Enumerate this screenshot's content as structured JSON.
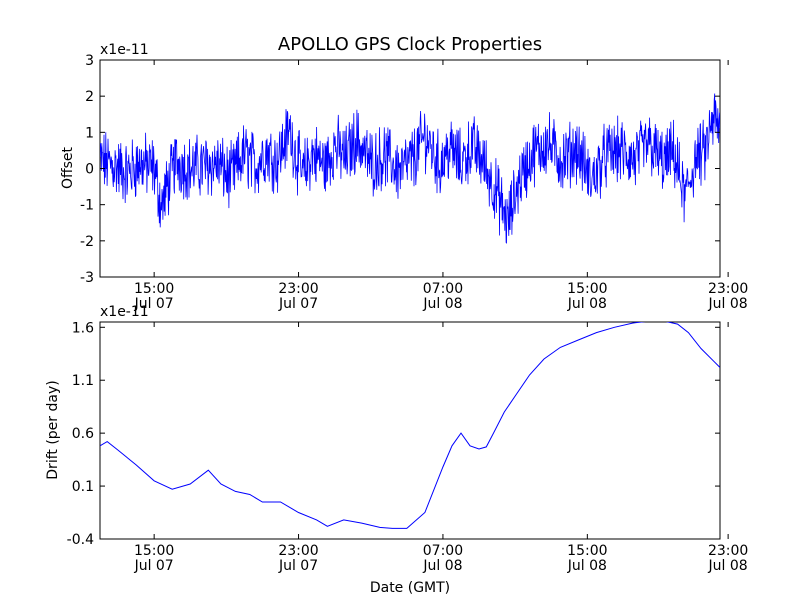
{
  "figure": {
    "title": "APOLLO GPS Clock Properties"
  },
  "chart_data": [
    {
      "type": "line",
      "title": "APOLLO GPS Clock Properties",
      "xlabel": "",
      "ylabel": "Offset",
      "y_scale_label": "x1e-11",
      "x_hours": [
        0,
        34.35
      ],
      "xlim_hours": [
        0,
        34.35
      ],
      "ylim": [
        -3,
        3
      ],
      "y_ticks": [
        -3,
        -2,
        -1,
        0,
        1,
        2,
        3
      ],
      "y_tick_labels": [
        "-3",
        "-2",
        "-1",
        "0",
        "1",
        "2",
        "3"
      ],
      "x_ticks_hours": [
        3,
        11,
        19,
        27,
        34.8
      ],
      "x_tick_labels": [
        [
          "15:00",
          "Jul 07"
        ],
        [
          "23:00",
          "Jul 07"
        ],
        [
          "07:00",
          "Jul 08"
        ],
        [
          "15:00",
          "Jul 08"
        ],
        [
          "23:00",
          "Jul 08"
        ]
      ],
      "series": [
        {
          "name": "offset",
          "color": "#0000ff",
          "x": [
            0,
            0.8,
            1.5,
            2.2,
            3.0,
            3.4,
            4.2,
            5.0,
            5.8,
            6.5,
            7.2,
            8.0,
            8.6,
            9.2,
            9.8,
            10.5,
            11.2,
            11.8,
            12.5,
            13.0,
            13.6,
            14.2,
            15.0,
            15.8,
            16.6,
            17.4,
            18.0,
            18.8,
            19.4,
            20.0,
            20.6,
            21.2,
            22.0,
            22.6,
            23.2,
            24.0,
            24.8,
            25.6,
            26.4,
            27.2,
            28.0,
            28.8,
            29.6,
            30.4,
            31.2,
            31.8,
            32.4,
            33.0,
            33.5,
            34.0,
            34.35
          ],
          "values": [
            0.3,
            0.1,
            -0.2,
            0.2,
            0.0,
            -1.5,
            0.3,
            0.0,
            0.1,
            0.2,
            -0.4,
            0.6,
            0.1,
            0.7,
            0.3,
            1.5,
            -0.3,
            0.6,
            0.1,
            0.9,
            0.4,
            1.2,
            0.2,
            0.5,
            -0.1,
            0.4,
            1.3,
            0.1,
            0.8,
            0.2,
            0.9,
            0.3,
            -1.0,
            -2.2,
            -0.5,
            0.6,
            1.0,
            0.3,
            0.8,
            -0.5,
            0.5,
            0.7,
            0.3,
            1.0,
            0.2,
            0.6,
            -1.2,
            0.4,
            0.6,
            2.0,
            1.4
          ]
        }
      ]
    },
    {
      "type": "line",
      "title": "",
      "xlabel": "Date (GMT)",
      "ylabel": "Drift (per day)",
      "y_scale_label": "x1e-11",
      "xlim_hours": [
        0,
        34.35
      ],
      "ylim": [
        -0.4,
        1.65
      ],
      "y_ticks": [
        -0.4,
        0.1,
        0.6,
        1.1,
        1.6
      ],
      "y_tick_labels": [
        "-0.4",
        "0.1",
        "0.6",
        "1.1",
        "1.6"
      ],
      "x_ticks_hours": [
        3,
        11,
        19,
        27,
        34.8
      ],
      "x_tick_labels": [
        [
          "15:00",
          "Jul 07"
        ],
        [
          "23:00",
          "Jul 07"
        ],
        [
          "07:00",
          "Jul 08"
        ],
        [
          "15:00",
          "Jul 08"
        ],
        [
          "23:00",
          "Jul 08"
        ]
      ],
      "series": [
        {
          "name": "drift",
          "color": "#0000ff",
          "x": [
            0,
            0.4,
            1.0,
            2.0,
            3.0,
            4.0,
            5.0,
            6.0,
            6.7,
            7.5,
            8.3,
            9.0,
            10.0,
            11.0,
            12.0,
            12.6,
            13.5,
            14.5,
            15.5,
            16.2,
            17.0,
            18.0,
            19.0,
            19.5,
            20.0,
            20.5,
            21.0,
            21.4,
            21.8,
            22.4,
            23.0,
            23.8,
            24.6,
            25.5,
            26.5,
            27.5,
            28.5,
            29.5,
            30.5,
            31.2,
            32.0,
            32.6,
            33.3,
            34.0,
            34.35
          ],
          "values": [
            0.48,
            0.52,
            0.44,
            0.3,
            0.15,
            0.07,
            0.12,
            0.25,
            0.12,
            0.05,
            0.02,
            -0.05,
            -0.05,
            -0.15,
            -0.22,
            -0.28,
            -0.22,
            -0.25,
            -0.29,
            -0.3,
            -0.3,
            -0.15,
            0.28,
            0.48,
            0.6,
            0.48,
            0.45,
            0.47,
            0.6,
            0.8,
            0.95,
            1.15,
            1.3,
            1.41,
            1.48,
            1.55,
            1.6,
            1.64,
            1.66,
            1.66,
            1.63,
            1.55,
            1.4,
            1.28,
            1.22
          ]
        }
      ]
    }
  ]
}
